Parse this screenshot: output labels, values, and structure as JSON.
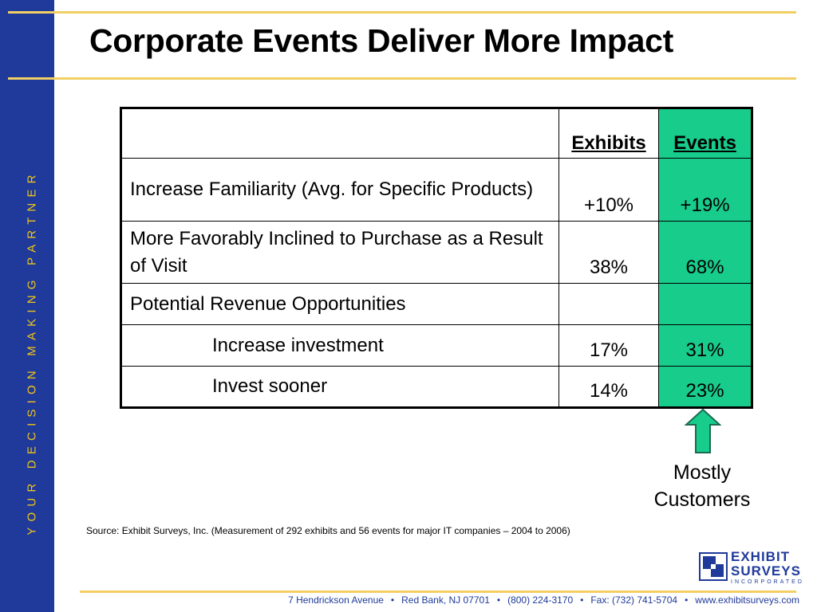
{
  "sidebar": {
    "text": "YOUR  DECISION  MAKING  PARTNER"
  },
  "title": "Corporate Events Deliver More Impact",
  "table": {
    "headers": {
      "exhibits": "Exhibits",
      "events": "Events"
    },
    "rows": [
      {
        "label": "Increase Familiarity (Avg. for Specific Products)",
        "exhibits": "+10%",
        "events": "+19%"
      },
      {
        "label": "More Favorably Inclined to Purchase as a Result of Visit",
        "exhibits": "38%",
        "events": "68%"
      },
      {
        "label": "Potential Revenue Opportunities",
        "exhibits": "",
        "events": ""
      },
      {
        "label": "Increase investment",
        "exhibits": "17%",
        "events": "31%"
      },
      {
        "label": "Invest sooner",
        "exhibits": "14%",
        "events": "23%"
      }
    ]
  },
  "callout": {
    "line1": "Mostly",
    "line2": "Customers"
  },
  "source": "Source: Exhibit Surveys, Inc. (Measurement of 292 exhibits and 56 events for major IT companies – 2004 to 2006)",
  "logo": {
    "line1": "EXHIBIT",
    "line2": "SURVEYS",
    "line3": "INCORPORATED"
  },
  "footer": {
    "address": "7 Hendrickson Avenue",
    "city": "Red Bank, NJ 07701",
    "phone": "(800) 224-3170",
    "fax": "Fax: (732) 741-5704",
    "web": "www.exhibitsurveys.com"
  },
  "colors": {
    "sidebar": "#1f3a9a",
    "tagline": "#f0c419",
    "rule": "#f2cf63",
    "events_fill": "#18cc8c",
    "footer_text": "#1f3a9a"
  },
  "icons": {
    "callout_arrow": "up-arrow-icon",
    "logo_mark": "exhibit-surveys-logo"
  }
}
